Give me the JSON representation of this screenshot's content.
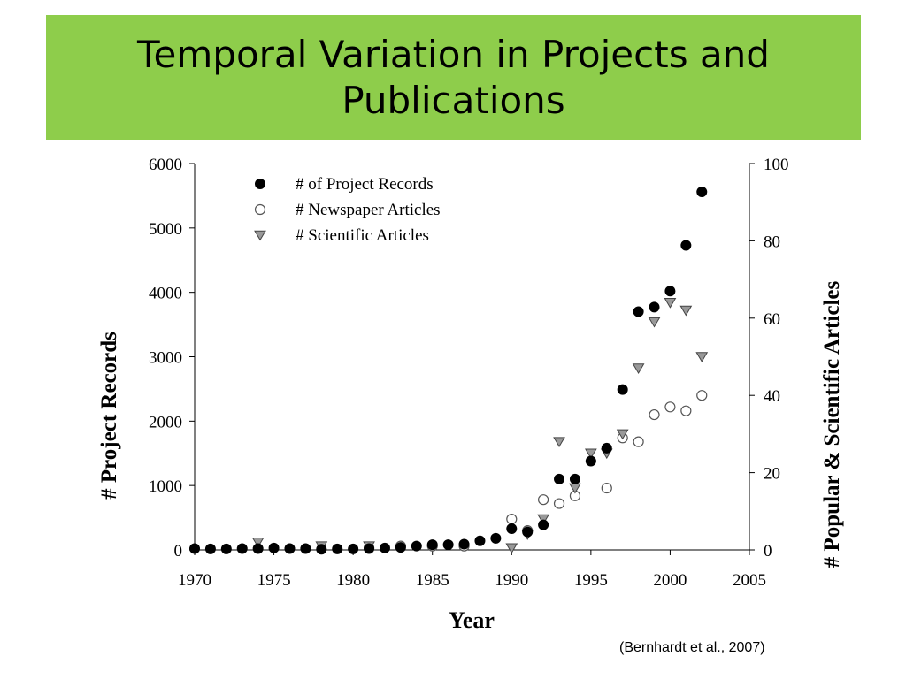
{
  "slide": {
    "title": "Temporal Variation in Projects and Publications",
    "citation": "(Bernhardt et al., 2007)",
    "title_bar_color": "#8ecd4b"
  },
  "chart_data": {
    "type": "scatter",
    "xlabel": "Year",
    "ylabel_left": "# Project Records",
    "ylabel_right": "# Popular & Scientific Articles",
    "xlim": [
      1970,
      2005
    ],
    "ylim_left": [
      0,
      6000
    ],
    "ylim_right": [
      0,
      100
    ],
    "x_ticks": [
      1970,
      1975,
      1980,
      1985,
      1990,
      1995,
      2000,
      2005
    ],
    "y_ticks_left": [
      0,
      1000,
      2000,
      3000,
      4000,
      5000,
      6000
    ],
    "y_ticks_right": [
      0,
      20,
      40,
      60,
      80,
      100
    ],
    "legend_position": "top-left",
    "series": [
      {
        "name": "# of Project Records",
        "axis": "left",
        "marker": "filled-circle",
        "x": [
          1970,
          1971,
          1972,
          1973,
          1974,
          1975,
          1976,
          1977,
          1978,
          1979,
          1980,
          1981,
          1982,
          1983,
          1984,
          1985,
          1986,
          1987,
          1988,
          1989,
          1990,
          1991,
          1992,
          1993,
          1994,
          1995,
          1996,
          1997,
          1998,
          1999,
          2000,
          2001,
          2002
        ],
        "y": [
          20,
          15,
          15,
          20,
          20,
          30,
          20,
          20,
          10,
          15,
          15,
          20,
          30,
          40,
          60,
          80,
          80,
          90,
          140,
          180,
          330,
          280,
          390,
          1100,
          1100,
          1380,
          1580,
          2490,
          3700,
          3770,
          4020,
          4730,
          5560
        ]
      },
      {
        "name": "# Newspaper Articles",
        "axis": "right",
        "marker": "open-circle",
        "x": [
          1981,
          1983,
          1985,
          1987,
          1990,
          1991,
          1992,
          1993,
          1994,
          1996,
          1997,
          1998,
          1999,
          2000,
          2001,
          2002
        ],
        "y": [
          0.5,
          1,
          1,
          1,
          8,
          5,
          13,
          12,
          14,
          16,
          29,
          28,
          35,
          37,
          36,
          40
        ]
      },
      {
        "name": "# Scientific Articles",
        "axis": "right",
        "marker": "triangle-down",
        "x": [
          1974,
          1978,
          1981,
          1990,
          1991,
          1992,
          1993,
          1994,
          1995,
          1996,
          1997,
          1998,
          1999,
          2000,
          2001,
          2002
        ],
        "y": [
          2,
          1,
          1,
          0.5,
          4,
          8,
          28,
          16,
          25,
          25,
          30,
          47,
          59,
          64,
          62,
          50
        ]
      }
    ]
  }
}
